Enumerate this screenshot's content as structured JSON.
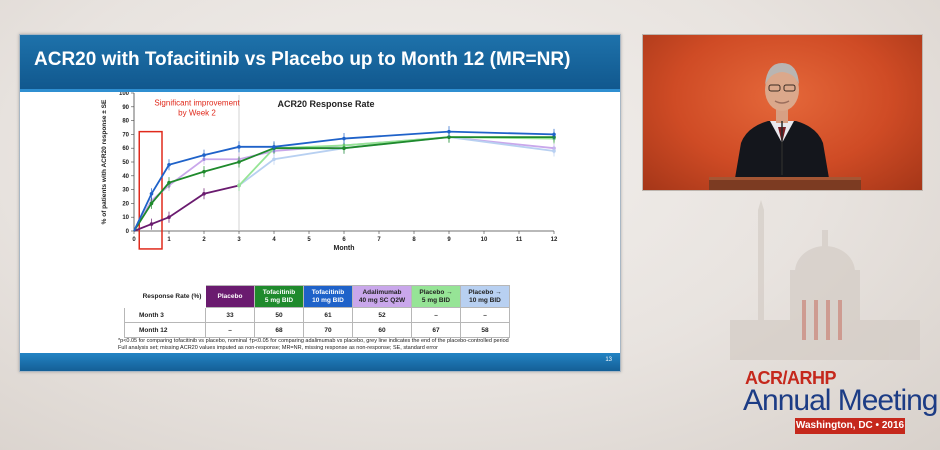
{
  "slide": {
    "title": "ACR20 with Tofacitinib vs Placebo up to Month 12 (MR=NR)",
    "page_number": "13",
    "footnotes": [
      "*p<0.05 for comparing tofacitinib vs placebo, nominal †p<0.05 for comparing adalimumab vs placebo, grey line indicates the end of the placebo-controlled period",
      "Full analysis set; missing ACR20 values imputed as non-response; MR=NR, missing response as non-response; SE, standard error"
    ]
  },
  "chart_data": {
    "type": "line",
    "title": "ACR20 Response Rate",
    "xlabel": "Month",
    "ylabel": "% of patients with ACR20 response ± SE",
    "xlim": [
      0,
      12
    ],
    "ylim": [
      0,
      100
    ],
    "xticks": [
      0,
      1,
      2,
      3,
      4,
      5,
      6,
      7,
      8,
      9,
      10,
      11,
      12
    ],
    "yticks": [
      0,
      10,
      20,
      30,
      40,
      50,
      60,
      70,
      80,
      90,
      100
    ],
    "grid": false,
    "reference_line_x": 3,
    "annotation": [
      "Significant improvement",
      "by Week 2"
    ],
    "annotation_box_x": [
      0.15,
      0.8
    ],
    "series": [
      {
        "color": "#6a1b6f",
        "points": [
          [
            0,
            0
          ],
          [
            0.5,
            5
          ],
          [
            1,
            10
          ],
          [
            2,
            27
          ],
          [
            3,
            33
          ]
        ]
      },
      {
        "color": "#c9a7eb",
        "points": [
          [
            0,
            0
          ],
          [
            0.5,
            22
          ],
          [
            1,
            33
          ],
          [
            2,
            52
          ],
          [
            3,
            52
          ],
          [
            4,
            58
          ],
          [
            6,
            62
          ],
          [
            9,
            68
          ],
          [
            12,
            60
          ]
        ]
      },
      {
        "color": "#b8d0f1",
        "points": [
          [
            3,
            33
          ],
          [
            4,
            52
          ],
          [
            6,
            60
          ],
          [
            9,
            68
          ],
          [
            12,
            58
          ]
        ]
      },
      {
        "color": "#96e496",
        "points": [
          [
            3,
            33
          ],
          [
            4,
            60
          ],
          [
            6,
            62
          ],
          [
            9,
            68
          ],
          [
            12,
            67
          ]
        ]
      },
      {
        "color": "#1f8a2c",
        "points": [
          [
            0,
            0
          ],
          [
            0.5,
            20
          ],
          [
            1,
            35
          ],
          [
            2,
            43
          ],
          [
            3,
            50
          ],
          [
            4,
            60
          ],
          [
            6,
            60
          ],
          [
            9,
            68
          ],
          [
            12,
            68
          ]
        ]
      },
      {
        "color": "#1f62c9",
        "points": [
          [
            0,
            0
          ],
          [
            0.5,
            27
          ],
          [
            1,
            48
          ],
          [
            2,
            55
          ],
          [
            3,
            61
          ],
          [
            4,
            61
          ],
          [
            6,
            67
          ],
          [
            9,
            72
          ],
          [
            12,
            70
          ]
        ]
      }
    ]
  },
  "table": {
    "header": [
      "Response Rate (%)",
      "Placebo",
      "Tofacitinib\n5 mg BID",
      "Tofacitinib\n10 mg BID",
      "Adalimumab\n40 mg SC Q2W",
      "Placebo →\n5 mg BID",
      "Placebo →\n10 mg BID"
    ],
    "rows": [
      {
        "label": "Month 3",
        "cells": [
          "33",
          "50",
          "61",
          "52",
          "–",
          "–"
        ]
      },
      {
        "label": "Month 12",
        "cells": [
          "–",
          "68",
          "70",
          "60",
          "67",
          "58"
        ]
      }
    ]
  },
  "logo": {
    "org": "ACR/ARHP",
    "event": "Annual Meeting",
    "location": "Washington, DC • 2016"
  },
  "colors": {
    "header_blue": "#11588e",
    "logo_red": "#c5281c",
    "logo_blue": "#1c3c85"
  }
}
